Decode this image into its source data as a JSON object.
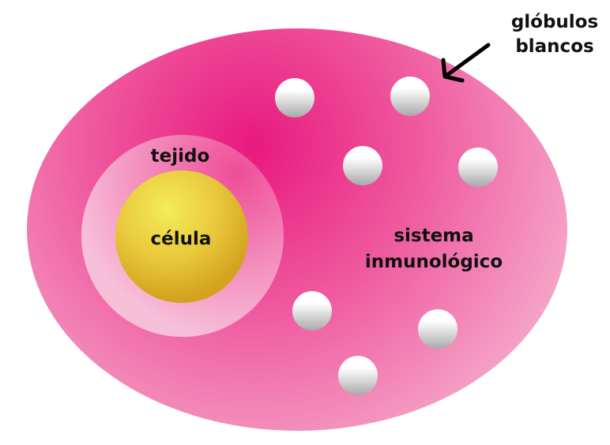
{
  "labels": {
    "wbc_line1": "glóbulos",
    "wbc_line2": "blancos",
    "tissue": "tejido",
    "cell": "célula",
    "system_line1": "sistema",
    "system_line2": "inmunológico"
  },
  "colors": {
    "system_center": "#e8197f",
    "system_mid": "#ef5a9f",
    "system_edge": "#f6b3cf",
    "tissue_center": "#ee4d98",
    "tissue_edge": "#f7bfd8",
    "cell_center": "#f3ec58",
    "cell_mid": "#e9c93c",
    "cell_edge": "#d3a21e",
    "globule_light": "#ffffff",
    "globule_dark": "#a8a8a8",
    "arrow": "#000000",
    "text": "#111111"
  },
  "icons": {
    "white_blood_cell": "white-blood-cell-sphere",
    "pointer": "arrow"
  }
}
